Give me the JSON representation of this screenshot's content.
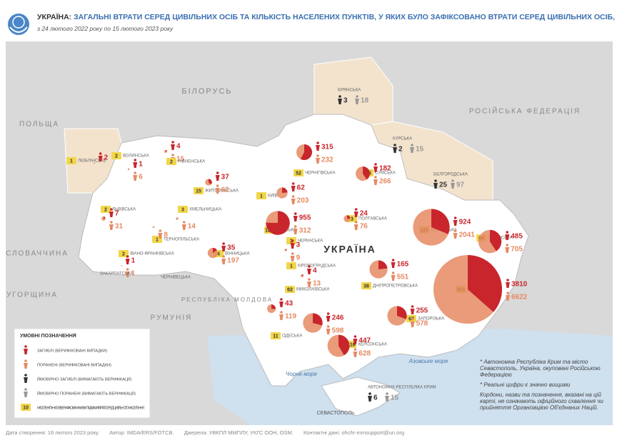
{
  "header": {
    "title_bold": "УКРАЇНА:",
    "title": "ЗАГАЛЬНІ ВТРАТИ СЕРЕД ЦИВІЛЬНИХ ОСІБ ТА КІЛЬКІСТЬ НАСЕЛЕНИХ ПУНКТІВ, У ЯКИХ БУЛО ЗАФІКСОВАНО ВТРАТИ СЕРЕД ЦИВІЛЬНИХ ОСІБ, ЗА ОБЛАСТЯМИ,",
    "subtitle": "з 24 лютого 2022 року по 15 лютого 2023 року"
  },
  "countries": [
    "БІЛОРУСЬ",
    "ПОЛЬЩА",
    "РОСІЙСЬКА ФЕДЕРАЦІЯ",
    "СЛОВАЧЧИНА",
    "УГОРЩИНА",
    "РУМУНІЯ",
    "РЕСПУБЛІКА МОЛДОВА",
    "УКРАЇНА"
  ],
  "seas": [
    "Чорне море",
    "Азовське море"
  ],
  "cities": [
    "СЕВАСТОПОЛЬ"
  ],
  "regions": [
    {
      "name": "ЛЮБЛІНСЬКЕ",
      "settlements": 1,
      "killed": 2
    },
    {
      "name": "ВОЛИНСЬКА",
      "settlements": 2,
      "killed": 4,
      "injured": 15
    },
    {
      "name": "РІВНЕНСЬКА",
      "settlements": 2,
      "killed": 1,
      "injured": 6
    },
    {
      "name": "ЛЬВІВСЬКА",
      "settlements": 2,
      "killed": 7,
      "injured": 31
    },
    {
      "name": "ТЕРНОПІЛЬСЬКА",
      "settlements": 1,
      "injured": 8
    },
    {
      "name": "ХМЕЛЬНИЦЬКА",
      "settlements": 3,
      "injured": 14
    },
    {
      "name": "ЖИТОМИРСЬКА",
      "settlements": 15,
      "killed": 37,
      "injured": 62
    },
    {
      "name": "КИЇВ",
      "settlements": 1,
      "killed": 62,
      "injured": 203
    },
    {
      "name": "КИЇВСЬКА",
      "settlements": 127,
      "killed": 955,
      "injured": 312
    },
    {
      "name": "ЧЕРНІГІВСЬКА",
      "settlements": 52,
      "killed": 315,
      "injured": 232
    },
    {
      "name": "СУМСЬКА",
      "settlements": 75,
      "killed": 182,
      "injured": 266
    },
    {
      "name": "ПОЛТАВСЬКА",
      "settlements": 3,
      "killed": 24,
      "injured": 76
    },
    {
      "name": "ЧЕРКАСЬКА",
      "settlements": 3,
      "killed": 3,
      "injured": 9
    },
    {
      "name": "ВІННИЦЬКА",
      "settlements": 4,
      "killed": 35,
      "injured": 197
    },
    {
      "name": "КІРОВОГРАДСЬКА",
      "settlements": 1,
      "killed": 4,
      "injured": 13
    },
    {
      "name": "ДНІПРОПЕТРОВСЬКА",
      "settlements": 38,
      "killed": 165,
      "injured": 551
    },
    {
      "name": "ХАРКІВСЬКА",
      "settlements": 185,
      "killed": 924,
      "injured": 2041
    },
    {
      "name": "ЛУГАНСЬКА",
      "settlements": 66,
      "killed": 485,
      "injured": 705
    },
    {
      "name": "ДОНЕЦЬКА",
      "settlements": 303,
      "killed": 3810,
      "injured": 6622
    },
    {
      "name": "ЗАПОРІЗЬКА",
      "settlements": 67,
      "killed": 255,
      "injured": 578
    },
    {
      "name": "ХЕРСОНСЬКА",
      "settlements": 116,
      "killed": 447,
      "injured": 628
    },
    {
      "name": "МИКОЛАЇВСЬКА",
      "settlements": 62,
      "killed": 246,
      "injured": 598
    },
    {
      "name": "ОДЕСЬКА",
      "settlements": 11,
      "killed": 43,
      "injured": 119
    },
    {
      "name": "ІВАНО-ФРАНКІВСЬКА",
      "settlements": 2,
      "killed": 1,
      "injured": 1
    },
    {
      "name": "ЗАКАРПАТСЬКА"
    },
    {
      "name": "ЧЕРНІВЕЦЬКА"
    }
  ],
  "probable": [
    {
      "name": "БРЯНСЬКА",
      "killed": 3,
      "injured": 18
    },
    {
      "name": "КУРСЬКА",
      "killed": 2,
      "injured": 15
    },
    {
      "name": "БЄЛГОРОДСЬКА",
      "killed": 25,
      "injured": 97
    },
    {
      "name": "АВТОНОМНА РЕСПУБЛІКА КРИМ",
      "killed": 6,
      "injured": 15
    }
  ],
  "legend": {
    "title": "УМОВНІ ПОЗНАЧЕННЯ",
    "items": [
      "ЗАГИБЛІ (ВЕРИФІКОВАНІ ВИПАДКИ)",
      "ПОРАНЕНІ (ВЕРИФІКОВАНІ ВИПАДКИ)",
      "ЙМОВІРНО ЗАГИБЛІ (ВИМАГАЮТЬ ВЕРИФІКАЦІЇ)",
      "ЙМОВІРНО ПОРАНЕНІ (ВИМАГАЮТЬ ВЕРИФІКАЦІЇ)",
      "НАСЕЛЕНІ ПУНКТИ З ВЕРИФІКОВАНИМИ ВИПАДКАМИ ВТРАТ СЕРЕД ЦИВІЛЬНОГО НАСЕЛЕННЯ"
    ],
    "sample": 10
  },
  "notes": [
    "* Автономна Республіка Крим та місто Севастополь, Україна, окуповані Російською Федерацією",
    "* Реальні цифри є значно вищими",
    "Кордони, назви та позначення, вказані на цій карті, не означають офіційного схвалення чи прийняття Організацією Об'єднаних Націй."
  ],
  "footer": [
    "Дата створення: 16 лютого 2023 року.",
    "Автор: IMDA/ERS/FOTCB.",
    "Джерела: УВКПЛ ММПЛУ, УКГС ООН, OSM.",
    "Контактні дані: ohchr-mmsupport@un.org"
  ]
}
